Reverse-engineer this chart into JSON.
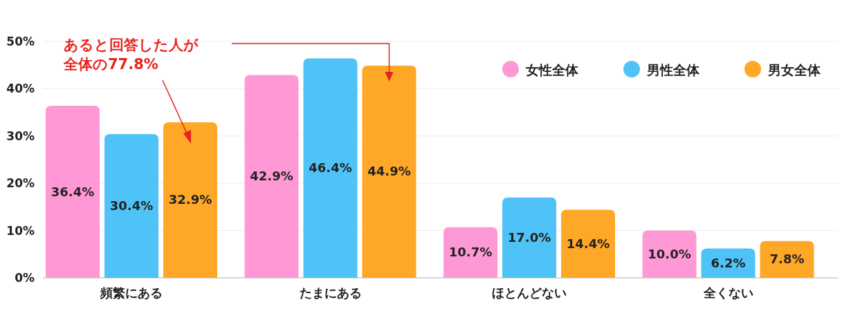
{
  "chart_data": {
    "type": "bar",
    "categories": [
      "頻繁にある",
      "たまにある",
      "ほとんどない",
      "全くない"
    ],
    "series": [
      {
        "name": "女性全体",
        "color": "#ff99d6",
        "values": [
          36.4,
          42.9,
          10.7,
          10.0
        ],
        "value_labels": [
          "36.4%",
          "42.9%",
          "10.7%",
          "10.0%"
        ]
      },
      {
        "name": "男性全体",
        "color": "#4fc3f7",
        "values": [
          30.4,
          46.4,
          17.0,
          6.2
        ],
        "value_labels": [
          "30.4%",
          "46.4%",
          "17.0%",
          "6.2%"
        ]
      },
      {
        "name": "男女全体",
        "color": "#ffa726",
        "values": [
          32.9,
          44.9,
          14.4,
          7.8
        ],
        "value_labels": [
          "32.9%",
          "44.9%",
          "14.4%",
          "7.8%"
        ]
      }
    ],
    "ylim": [
      0,
      50
    ],
    "yticks": [
      {
        "value": 0,
        "label": "0%"
      },
      {
        "value": 10,
        "label": "10%"
      },
      {
        "value": 20,
        "label": "20%"
      },
      {
        "value": 30,
        "label": "30%"
      },
      {
        "value": 40,
        "label": "40%"
      },
      {
        "value": 50,
        "label": "50%"
      }
    ],
    "grid": "y",
    "legend": "top right",
    "annotations": [
      "あると回答した人が",
      "全体の77.8%"
    ]
  }
}
